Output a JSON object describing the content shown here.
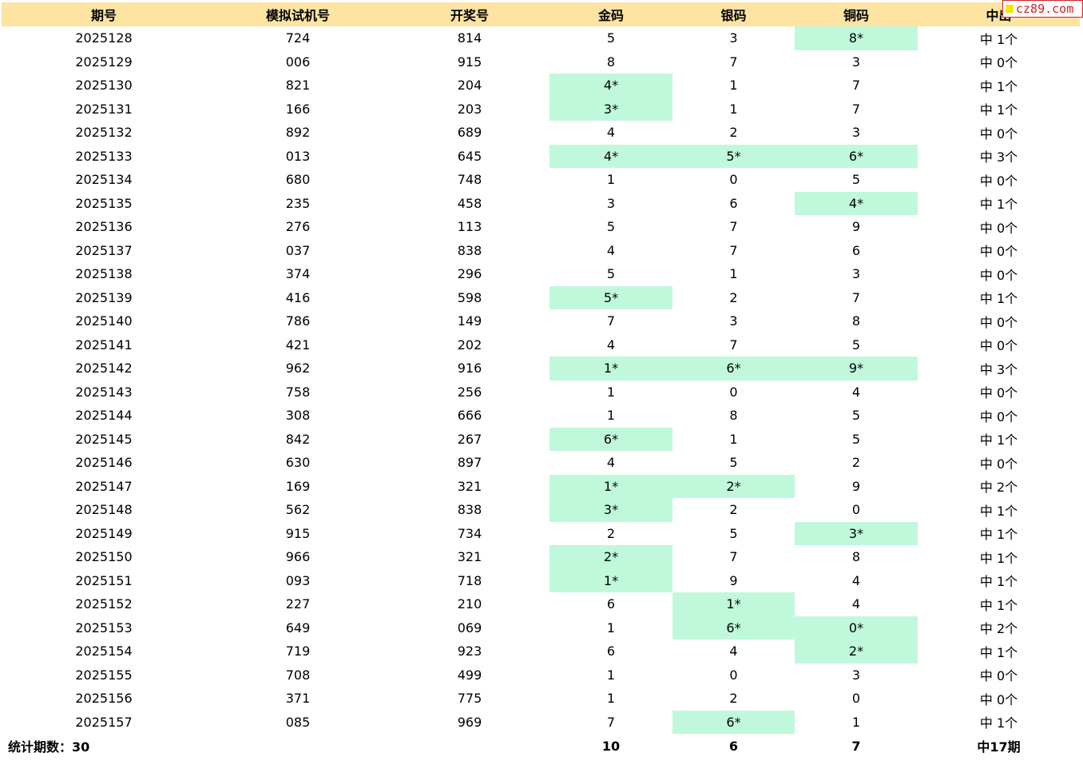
{
  "headers": [
    "期号",
    "模拟试机号",
    "开奖号",
    "金码",
    "银码",
    "铜码",
    "中出"
  ],
  "rows": [
    {
      "period": "2025128",
      "sim": "724",
      "draw": "814",
      "gold": "5",
      "silver": "3",
      "bronze": "8*",
      "hit": "中 1个"
    },
    {
      "period": "2025129",
      "sim": "006",
      "draw": "915",
      "gold": "8",
      "silver": "7",
      "bronze": "3",
      "hit": "中 0个"
    },
    {
      "period": "2025130",
      "sim": "821",
      "draw": "204",
      "gold": "4*",
      "silver": "1",
      "bronze": "7",
      "hit": "中 1个"
    },
    {
      "period": "2025131",
      "sim": "166",
      "draw": "203",
      "gold": "3*",
      "silver": "1",
      "bronze": "7",
      "hit": "中 1个"
    },
    {
      "period": "2025132",
      "sim": "892",
      "draw": "689",
      "gold": "4",
      "silver": "2",
      "bronze": "3",
      "hit": "中 0个"
    },
    {
      "period": "2025133",
      "sim": "013",
      "draw": "645",
      "gold": "4*",
      "silver": "5*",
      "bronze": "6*",
      "hit": "中 3个"
    },
    {
      "period": "2025134",
      "sim": "680",
      "draw": "748",
      "gold": "1",
      "silver": "0",
      "bronze": "5",
      "hit": "中 0个"
    },
    {
      "period": "2025135",
      "sim": "235",
      "draw": "458",
      "gold": "3",
      "silver": "6",
      "bronze": "4*",
      "hit": "中 1个"
    },
    {
      "period": "2025136",
      "sim": "276",
      "draw": "113",
      "gold": "5",
      "silver": "7",
      "bronze": "9",
      "hit": "中 0个"
    },
    {
      "period": "2025137",
      "sim": "037",
      "draw": "838",
      "gold": "4",
      "silver": "7",
      "bronze": "6",
      "hit": "中 0个"
    },
    {
      "period": "2025138",
      "sim": "374",
      "draw": "296",
      "gold": "5",
      "silver": "1",
      "bronze": "3",
      "hit": "中 0个"
    },
    {
      "period": "2025139",
      "sim": "416",
      "draw": "598",
      "gold": "5*",
      "silver": "2",
      "bronze": "7",
      "hit": "中 1个"
    },
    {
      "period": "2025140",
      "sim": "786",
      "draw": "149",
      "gold": "7",
      "silver": "3",
      "bronze": "8",
      "hit": "中 0个"
    },
    {
      "period": "2025141",
      "sim": "421",
      "draw": "202",
      "gold": "4",
      "silver": "7",
      "bronze": "5",
      "hit": "中 0个"
    },
    {
      "period": "2025142",
      "sim": "962",
      "draw": "916",
      "gold": "1*",
      "silver": "6*",
      "bronze": "9*",
      "hit": "中 3个"
    },
    {
      "period": "2025143",
      "sim": "758",
      "draw": "256",
      "gold": "1",
      "silver": "0",
      "bronze": "4",
      "hit": "中 0个"
    },
    {
      "period": "2025144",
      "sim": "308",
      "draw": "666",
      "gold": "1",
      "silver": "8",
      "bronze": "5",
      "hit": "中 0个"
    },
    {
      "period": "2025145",
      "sim": "842",
      "draw": "267",
      "gold": "6*",
      "silver": "1",
      "bronze": "5",
      "hit": "中 1个"
    },
    {
      "period": "2025146",
      "sim": "630",
      "draw": "897",
      "gold": "4",
      "silver": "5",
      "bronze": "2",
      "hit": "中 0个"
    },
    {
      "period": "2025147",
      "sim": "169",
      "draw": "321",
      "gold": "1*",
      "silver": "2*",
      "bronze": "9",
      "hit": "中 2个"
    },
    {
      "period": "2025148",
      "sim": "562",
      "draw": "838",
      "gold": "3*",
      "silver": "2",
      "bronze": "0",
      "hit": "中 1个"
    },
    {
      "period": "2025149",
      "sim": "915",
      "draw": "734",
      "gold": "2",
      "silver": "5",
      "bronze": "3*",
      "hit": "中 1个"
    },
    {
      "period": "2025150",
      "sim": "966",
      "draw": "321",
      "gold": "2*",
      "silver": "7",
      "bronze": "8",
      "hit": "中 1个"
    },
    {
      "period": "2025151",
      "sim": "093",
      "draw": "718",
      "gold": "1*",
      "silver": "9",
      "bronze": "4",
      "hit": "中 1个"
    },
    {
      "period": "2025152",
      "sim": "227",
      "draw": "210",
      "gold": "6",
      "silver": "1*",
      "bronze": "4",
      "hit": "中 1个"
    },
    {
      "period": "2025153",
      "sim": "649",
      "draw": "069",
      "gold": "1",
      "silver": "6*",
      "bronze": "0*",
      "hit": "中 2个"
    },
    {
      "period": "2025154",
      "sim": "719",
      "draw": "923",
      "gold": "6",
      "silver": "4",
      "bronze": "2*",
      "hit": "中 1个"
    },
    {
      "period": "2025155",
      "sim": "708",
      "draw": "499",
      "gold": "1",
      "silver": "0",
      "bronze": "3",
      "hit": "中 0个"
    },
    {
      "period": "2025156",
      "sim": "371",
      "draw": "775",
      "gold": "1",
      "silver": "2",
      "bronze": "0",
      "hit": "中 0个"
    },
    {
      "period": "2025157",
      "sim": "085",
      "draw": "969",
      "gold": "7",
      "silver": "6*",
      "bronze": "1",
      "hit": "中 1个"
    }
  ],
  "footer": {
    "label": "统计期数：30",
    "gold_total": "10",
    "silver_total": "6",
    "bronze_total": "7",
    "hit_total": "中17期"
  },
  "watermark": {
    "text": "cz89.com"
  },
  "colors": {
    "header_bg": "#fde4a3",
    "hit_bg": "#c0f8dc",
    "watermark_border": "#cc2222",
    "watermark_square": "#f5e800"
  }
}
